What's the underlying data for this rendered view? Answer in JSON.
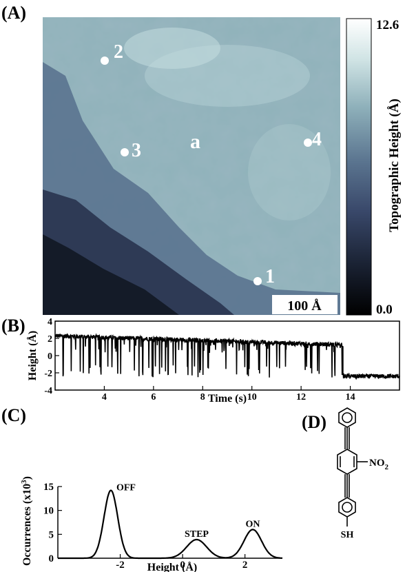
{
  "panels": {
    "a": "(A)",
    "b": "(B)",
    "c": "(C)",
    "d": "(D)"
  },
  "image": {
    "markers": [
      "2",
      "3",
      "a",
      "4",
      "1"
    ],
    "scale_bar": "100 Å"
  },
  "colorbar": {
    "max": "12.6",
    "min": "0.0",
    "label": "Topographic Height (Å)",
    "colors": [
      "#000000",
      "#1a2233",
      "#39486a",
      "#5b7590",
      "#8eb0ba",
      "#cfe3e4",
      "#ffffff"
    ]
  },
  "molecule": {
    "no2": "NO",
    "no2_sub": "2",
    "sh": "SH"
  },
  "chart_data": [
    {
      "type": "line",
      "panel": "B",
      "xlabel": "Time (s)",
      "ylabel": "Height (Å)",
      "xlim": [
        2,
        16
      ],
      "ylim": [
        -4,
        4
      ],
      "xticks": [
        4,
        6,
        8,
        10,
        12,
        14
      ],
      "yticks": [
        -4,
        -2,
        0,
        2,
        4
      ],
      "segments": [
        {
          "x0": 2.0,
          "x1": 13.7,
          "baseline": 2.3,
          "low": -2.6
        },
        {
          "x0": 13.7,
          "x1": 16.0,
          "baseline": -2.4,
          "low": -2.6
        }
      ],
      "switch_density": "dense",
      "color": "#000000"
    },
    {
      "type": "line",
      "panel": "C",
      "xlabel": "Height (Å)",
      "ylabel": "Occurrences (x10",
      "ylabel_sup": "3",
      "ylabel_end": ")",
      "xlim": [
        -4,
        3.2
      ],
      "ylim": [
        0,
        15
      ],
      "xticks": [
        -2,
        0,
        2
      ],
      "yticks": [
        0,
        5,
        10,
        15
      ],
      "peaks": [
        {
          "label": "OFF",
          "x": -2.3,
          "y": 14.2,
          "width": 0.22
        },
        {
          "label": "STEP",
          "x": 0.45,
          "y": 3.9,
          "width": 0.32
        },
        {
          "label": "ON",
          "x": 2.25,
          "y": 6.0,
          "width": 0.28
        }
      ],
      "color": "#000000"
    }
  ]
}
